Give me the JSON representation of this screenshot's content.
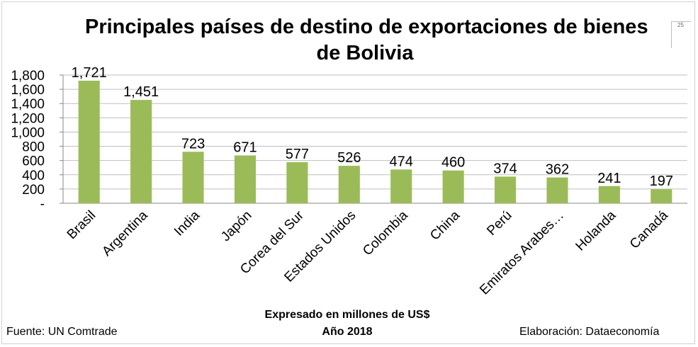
{
  "header": {
    "title_line1": "Principales países de destino de exportaciones de bienes",
    "title_line2": "de Bolivia",
    "corner_mark": "25"
  },
  "footer": {
    "unit_note": "Expresado en millones de US$",
    "year_note": "Año 2018",
    "source": "Fuente: UN Comtrade",
    "credit": "Elaboración: Dataeconomía"
  },
  "chart_data": {
    "type": "bar",
    "title": "Principales países de destino de exportaciones de bienes de Bolivia",
    "categories": [
      "Brasil",
      "Argentina",
      "India",
      "Japón",
      "Corea del Sur",
      "Estados Unidos",
      "Colombia",
      "China",
      "Perú",
      "Emiratos Arabes…",
      "Holanda",
      "Canadá"
    ],
    "values": [
      1721,
      1451,
      723,
      671,
      577,
      526,
      474,
      460,
      374,
      362,
      241,
      197
    ],
    "value_labels": [
      "1,721",
      "1,451",
      "723",
      "671",
      "577",
      "526",
      "474",
      "460",
      "374",
      "362",
      "241",
      "197"
    ],
    "ylim": [
      0,
      1800
    ],
    "yticks": [
      0,
      200,
      400,
      600,
      800,
      1000,
      1200,
      1400,
      1600,
      1800
    ],
    "ytick_labels": [
      "-",
      "200",
      "400",
      "600",
      "800",
      "1,000",
      "1,200",
      "1,400",
      "1,600",
      "1,800"
    ],
    "xlabel": "",
    "ylabel": "",
    "grid": true,
    "legend": "none",
    "bar_color": "#9bbb59",
    "grid_color": "#bfbfbf"
  }
}
